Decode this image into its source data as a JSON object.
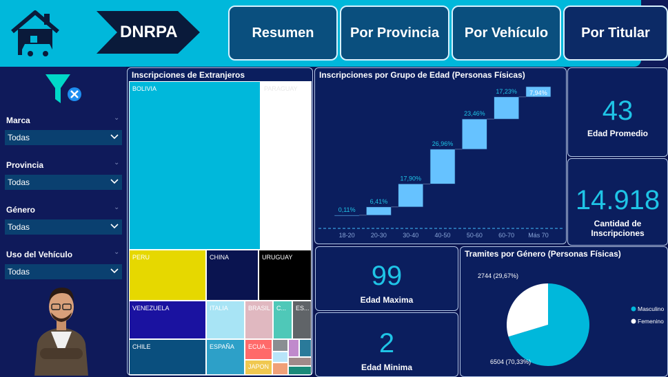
{
  "brand": {
    "name": "DNRPA"
  },
  "nav": {
    "resumen": "Resumen",
    "provincia": "Por Provincia",
    "vehiculo": "Por Vehículo",
    "titular": "Por Titular"
  },
  "filters": [
    {
      "label": "Marca",
      "value": "Todas"
    },
    {
      "label": "Provincia",
      "value": "Todas"
    },
    {
      "label": "Género",
      "value": "Todas"
    },
    {
      "label": "Uso del Vehículo",
      "value": "Todas"
    }
  ],
  "treemap": {
    "title": "Inscripciones de Extranjeros",
    "items": [
      {
        "label": "BOLIVIA",
        "color": "#00b8db"
      },
      {
        "label": "PARAGUAY",
        "color": "#ffffff"
      },
      {
        "label": "PERU",
        "color": "#e6d800"
      },
      {
        "label": "CHINA",
        "color": "#0a1450"
      },
      {
        "label": "URUGUAY",
        "color": "#000000"
      },
      {
        "label": "VENEZUELA",
        "color": "#1a12a0"
      },
      {
        "label": "ITALIA",
        "color": "#a8e4f5"
      },
      {
        "label": "BRASIL",
        "color": "#e0b8c0"
      },
      {
        "label": "C...",
        "color": "#4fc8b8"
      },
      {
        "label": "ES...",
        "color": "#606468"
      },
      {
        "label": "CHILE",
        "color": "#0a4f7e"
      },
      {
        "label": "ESPAÑA",
        "color": "#2da0c8"
      },
      {
        "label": "ECUA...",
        "color": "#ff6a6a"
      },
      {
        "label": "JAPON",
        "color": "#f0c850"
      }
    ]
  },
  "chart_data": {
    "type": "bar",
    "title": "Inscripciones por Grupo de Edad (Personas Físicas)",
    "categories": [
      "18-20",
      "20-30",
      "30-40",
      "40-50",
      "50-60",
      "60-70",
      "Más 70"
    ],
    "values": [
      0.11,
      6.41,
      17.9,
      26.96,
      23.46,
      17.23,
      7.94
    ],
    "data_labels": [
      "0,11%",
      "6,41%",
      "17,90%",
      "26,96%",
      "23,46%",
      "17,23%",
      "7,94%"
    ],
    "xlabel": "",
    "ylabel": "",
    "style": "waterfall",
    "bar_color": "#66c2ff"
  },
  "kpis": {
    "edad_promedio": {
      "value": "43",
      "label": "Edad Promedio"
    },
    "cantidad": {
      "value": "14.918",
      "label": "Cantidad de Inscripciones"
    },
    "edad_maxima": {
      "value": "99",
      "label": "Edad Maxima"
    },
    "edad_minima": {
      "value": "2",
      "label": "Edad Minima"
    }
  },
  "pie": {
    "title": "Tramites por Género (Personas Físicas)",
    "type": "pie",
    "slices": [
      {
        "name": "Masculino",
        "value": 6504,
        "percent": 70.33,
        "label": "6504 (70,33%)",
        "color": "#00b8db"
      },
      {
        "name": "Femenino",
        "value": 2744,
        "percent": 29.67,
        "label": "2744 (29,67%)",
        "color": "#ffffff"
      }
    ]
  }
}
